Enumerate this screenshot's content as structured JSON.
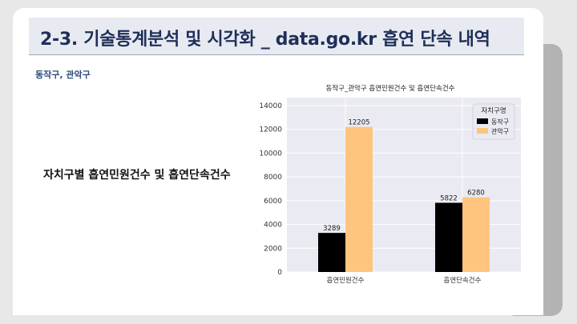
{
  "slide": {
    "title": "2-3. 기술통계분석 및 시각화 _ data.go.kr 흡연 단속 내역",
    "subtitle": "동작구, 관악구",
    "left_caption": "자치구별 흡연민원건수 및 흡연단속건수"
  },
  "nav": {
    "down_arrow": "↓"
  },
  "chart_data": {
    "type": "bar",
    "title": "동작구_관악구 흡연민원건수 및 흡연단속건수",
    "categories": [
      "흡연민원건수",
      "흡연단속건수"
    ],
    "series": [
      {
        "name": "동작구",
        "values": [
          3289,
          5822
        ],
        "color": "#000000"
      },
      {
        "name": "관악구",
        "values": [
          12205,
          6280
        ],
        "color": "#ffc47e"
      }
    ],
    "ylim": [
      0,
      14000
    ],
    "yticks": [
      0,
      2000,
      4000,
      6000,
      8000,
      10000,
      12000,
      14000
    ],
    "legend": {
      "title": "자치구명",
      "placement": "top-right"
    },
    "grid": true,
    "background": "#eaeaf2"
  }
}
